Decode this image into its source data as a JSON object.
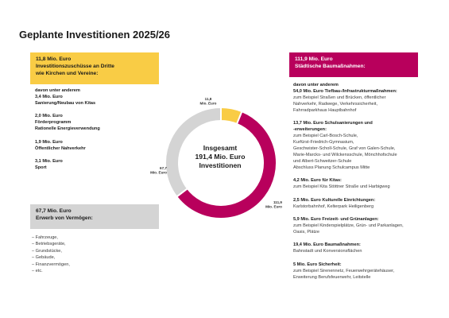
{
  "page": {
    "title": "Geplante Investitionen 2025/26"
  },
  "boxes": {
    "yellow": {
      "line1": "11,8 Mio. Euro",
      "line2": "Investitionszuschüsse an Dritte",
      "line3": "wie Kirchen und Vereine:"
    },
    "magenta": {
      "line1": "111,9 Mio. Euro",
      "line2": "Städtische Baumaßnahmen:"
    },
    "grey": {
      "line1": "67,7 Mio. Euro",
      "line2": "Erwerb von Vermögen:"
    }
  },
  "left_list": {
    "g1": {
      "b1": "davon unter anderem",
      "b2": "3,4 Mio. Euro",
      "b3": "Sanierung/Neubau von Kitas"
    },
    "g2": {
      "b1": "2,0 Mio. Euro",
      "b2": "Förderprogramm",
      "b3": "Rationelle Energieverwendung"
    },
    "g3": {
      "b1": "1,9 Mio. Euro",
      "b2": "Öffentlicher Nahverkehr"
    },
    "g4": {
      "b1": "3,1 Mio. Euro",
      "b2": "Sport"
    }
  },
  "right_list": {
    "g1": {
      "b1": "davon unter anderem",
      "b2": "54,0 Mio. Euro Tiefbau-/Infrastrukturmaßnahmen:",
      "n1": "zum Beispiel Straßen und Brücken, öffentlicher",
      "n2": "Nahverkehr, Radwege, Verkehrssicherheit,",
      "n3": "Fahrradparkhaus Hauptbahnhof"
    },
    "g2": {
      "b1": "13,7 Mio. Euro Schulsanierungen und",
      "b2": "-erweiterungen:",
      "n1": "zum Beispiel Carl-Bosch-Schule,",
      "n2": "Kurfürst-Friedrich-Gymnasium,",
      "n3": "Geschwister-Scholl-Schule, Graf von Galen-Schule,",
      "n4": "Marie-Marcks- und Wilckensschule, Mönchhofschule",
      "n5": "und Albert-Schweitzer-Schule",
      "n6": "Abschluss Planung Schulcampus Mitte"
    },
    "g3": {
      "b1": "4,2 Mio. Euro für Kitas:",
      "n1": "zum Beispiel Kita Stöttner Straße und Harbigweg"
    },
    "g4": {
      "b1": "2,5 Mio. Euro Kulturelle Einrichtungen:",
      "n1": "Karlstorbahnhof, Kelterpark Heiligenberg"
    },
    "g5": {
      "b1": "5,9 Mio. Euro Freizeit- und Grünanlagen:",
      "n1": "zum Beispiel Kinderspielplätze, Grün- und Parkanlagen,",
      "n2": "Oasis, Plätze"
    },
    "g6": {
      "b1": "19,4 Mio. Euro Baumaßnahmen:",
      "n1": "Bahnstadt und Konversionsflächen"
    },
    "g7": {
      "b1": "5 Mio. Euro Sicherheit:",
      "n1": "zum Beispiel Sirenennetz, Feuerwehrgerätehäuser,",
      "n2": "Erweiterung Berufsfeuerwehr, Leitstelle"
    }
  },
  "bullets": [
    "Fahrzeuge,",
    "Betriebsgeräte,",
    "Grundstücke,",
    "Gebäude,",
    "Finanzvermögen,",
    "etc."
  ],
  "center": {
    "l1": "Insgesamt",
    "l2": "191,4 Mio. Euro",
    "l3": "Investitionen"
  },
  "chart_data": {
    "type": "pie",
    "donut": true,
    "title": "Geplante Investitionen 2025/26",
    "unit": "Mio. Euro",
    "total": 191.4,
    "slices": [
      {
        "label": "11,8",
        "sublabel": "Mio. Euro",
        "value": 11.8,
        "color": "#f9cc45"
      },
      {
        "label": "111,9",
        "sublabel": "Mio. Euro",
        "value": 111.9,
        "color": "#b8005c"
      },
      {
        "label": "67,7",
        "sublabel": "Mio. Euro",
        "value": 67.7,
        "color": "#d4d4d4"
      }
    ]
  }
}
